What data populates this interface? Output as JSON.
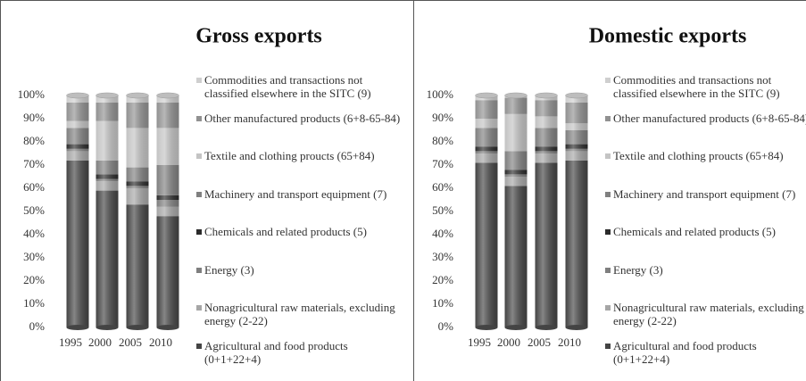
{
  "chart_data": [
    {
      "type": "bar",
      "stacked": true,
      "title": "Gross exports",
      "categories": [
        "1995",
        "2000",
        "2005",
        "2010"
      ],
      "ylim": [
        0,
        100
      ],
      "yticks": [
        {
          "value": 0,
          "label": "0%"
        },
        {
          "value": 10,
          "label": "10%"
        },
        {
          "value": 20,
          "label": "20%"
        },
        {
          "value": 30,
          "label": "30%"
        },
        {
          "value": 40,
          "label": "40%"
        },
        {
          "value": 50,
          "label": "50%"
        },
        {
          "value": 60,
          "label": "60%"
        },
        {
          "value": 70,
          "label": "70%"
        },
        {
          "value": 80,
          "label": "80%"
        },
        {
          "value": 90,
          "label": "90%"
        },
        {
          "value": 100,
          "label": "100%"
        }
      ],
      "grid": false,
      "legend": "right",
      "series": [
        {
          "name": "Agricultural and food products (0+1+22+4)",
          "color": "#444444",
          "values": [
            72,
            59,
            53,
            48
          ]
        },
        {
          "name": "Nonagricultural raw materials, excluding energy (2-22)",
          "color": "#a6a6a6",
          "values": [
            4,
            4,
            7,
            4
          ]
        },
        {
          "name": "Energy (3)",
          "color": "#7f7f7f",
          "values": [
            1,
            1,
            1,
            3
          ]
        },
        {
          "name": "Chemicals and related products (5)",
          "color": "#2b2b2b",
          "values": [
            2,
            2,
            2,
            2
          ]
        },
        {
          "name": "Machinery and transport equipment (7)",
          "color": "#808080",
          "values": [
            7,
            6,
            6,
            13
          ]
        },
        {
          "name": "Textile and clothing proucts (65+84)",
          "color": "#c4c4c4",
          "values": [
            3,
            17,
            17,
            16
          ]
        },
        {
          "name": "Other manufactured products (6+8-65-84)",
          "color": "#919191",
          "values": [
            8,
            8,
            11,
            11
          ]
        },
        {
          "name": "Commodities and transactions not classified elsewhere in the SITC (9)",
          "color": "#cfcfcf",
          "values": [
            3,
            3,
            3,
            3
          ]
        }
      ]
    },
    {
      "type": "bar",
      "stacked": true,
      "title": "Domestic exports",
      "categories": [
        "1995",
        "2000",
        "2005",
        "2010"
      ],
      "ylim": [
        0,
        100
      ],
      "yticks": [
        {
          "value": 0,
          "label": "0%"
        },
        {
          "value": 10,
          "label": "10%"
        },
        {
          "value": 20,
          "label": "20%"
        },
        {
          "value": 30,
          "label": "30%"
        },
        {
          "value": 40,
          "label": "40%"
        },
        {
          "value": 50,
          "label": "50%"
        },
        {
          "value": 60,
          "label": "60%"
        },
        {
          "value": 70,
          "label": "70%"
        },
        {
          "value": 80,
          "label": "80%"
        },
        {
          "value": 90,
          "label": "90%"
        },
        {
          "value": 100,
          "label": "100%"
        }
      ],
      "grid": false,
      "legend": "right",
      "series": [
        {
          "name": "Agricultural and food products (0+1+22+4)",
          "color": "#444444",
          "values": [
            71,
            61,
            71,
            72
          ]
        },
        {
          "name": "Nonagricultural raw materials, excluding energy (2-22)",
          "color": "#a6a6a6",
          "values": [
            4,
            4,
            4,
            4
          ]
        },
        {
          "name": "Energy (3)",
          "color": "#7f7f7f",
          "values": [
            1,
            1,
            1,
            1
          ]
        },
        {
          "name": "Chemicals and related products (5)",
          "color": "#2b2b2b",
          "values": [
            2,
            2,
            2,
            2
          ]
        },
        {
          "name": "Machinery and transport equipment (7)",
          "color": "#808080",
          "values": [
            8,
            8,
            8,
            6
          ]
        },
        {
          "name": "Textile and clothing proucts (65+84)",
          "color": "#c4c4c4",
          "values": [
            4,
            16,
            5,
            3
          ]
        },
        {
          "name": "Other manufactured products (6+8-65-84)",
          "color": "#919191",
          "values": [
            8,
            7,
            7,
            9
          ]
        },
        {
          "name": "Commodities and transactions not classified elsewhere in the SITC (9)",
          "color": "#cfcfcf",
          "values": [
            2,
            1,
            2,
            3
          ]
        }
      ]
    }
  ]
}
